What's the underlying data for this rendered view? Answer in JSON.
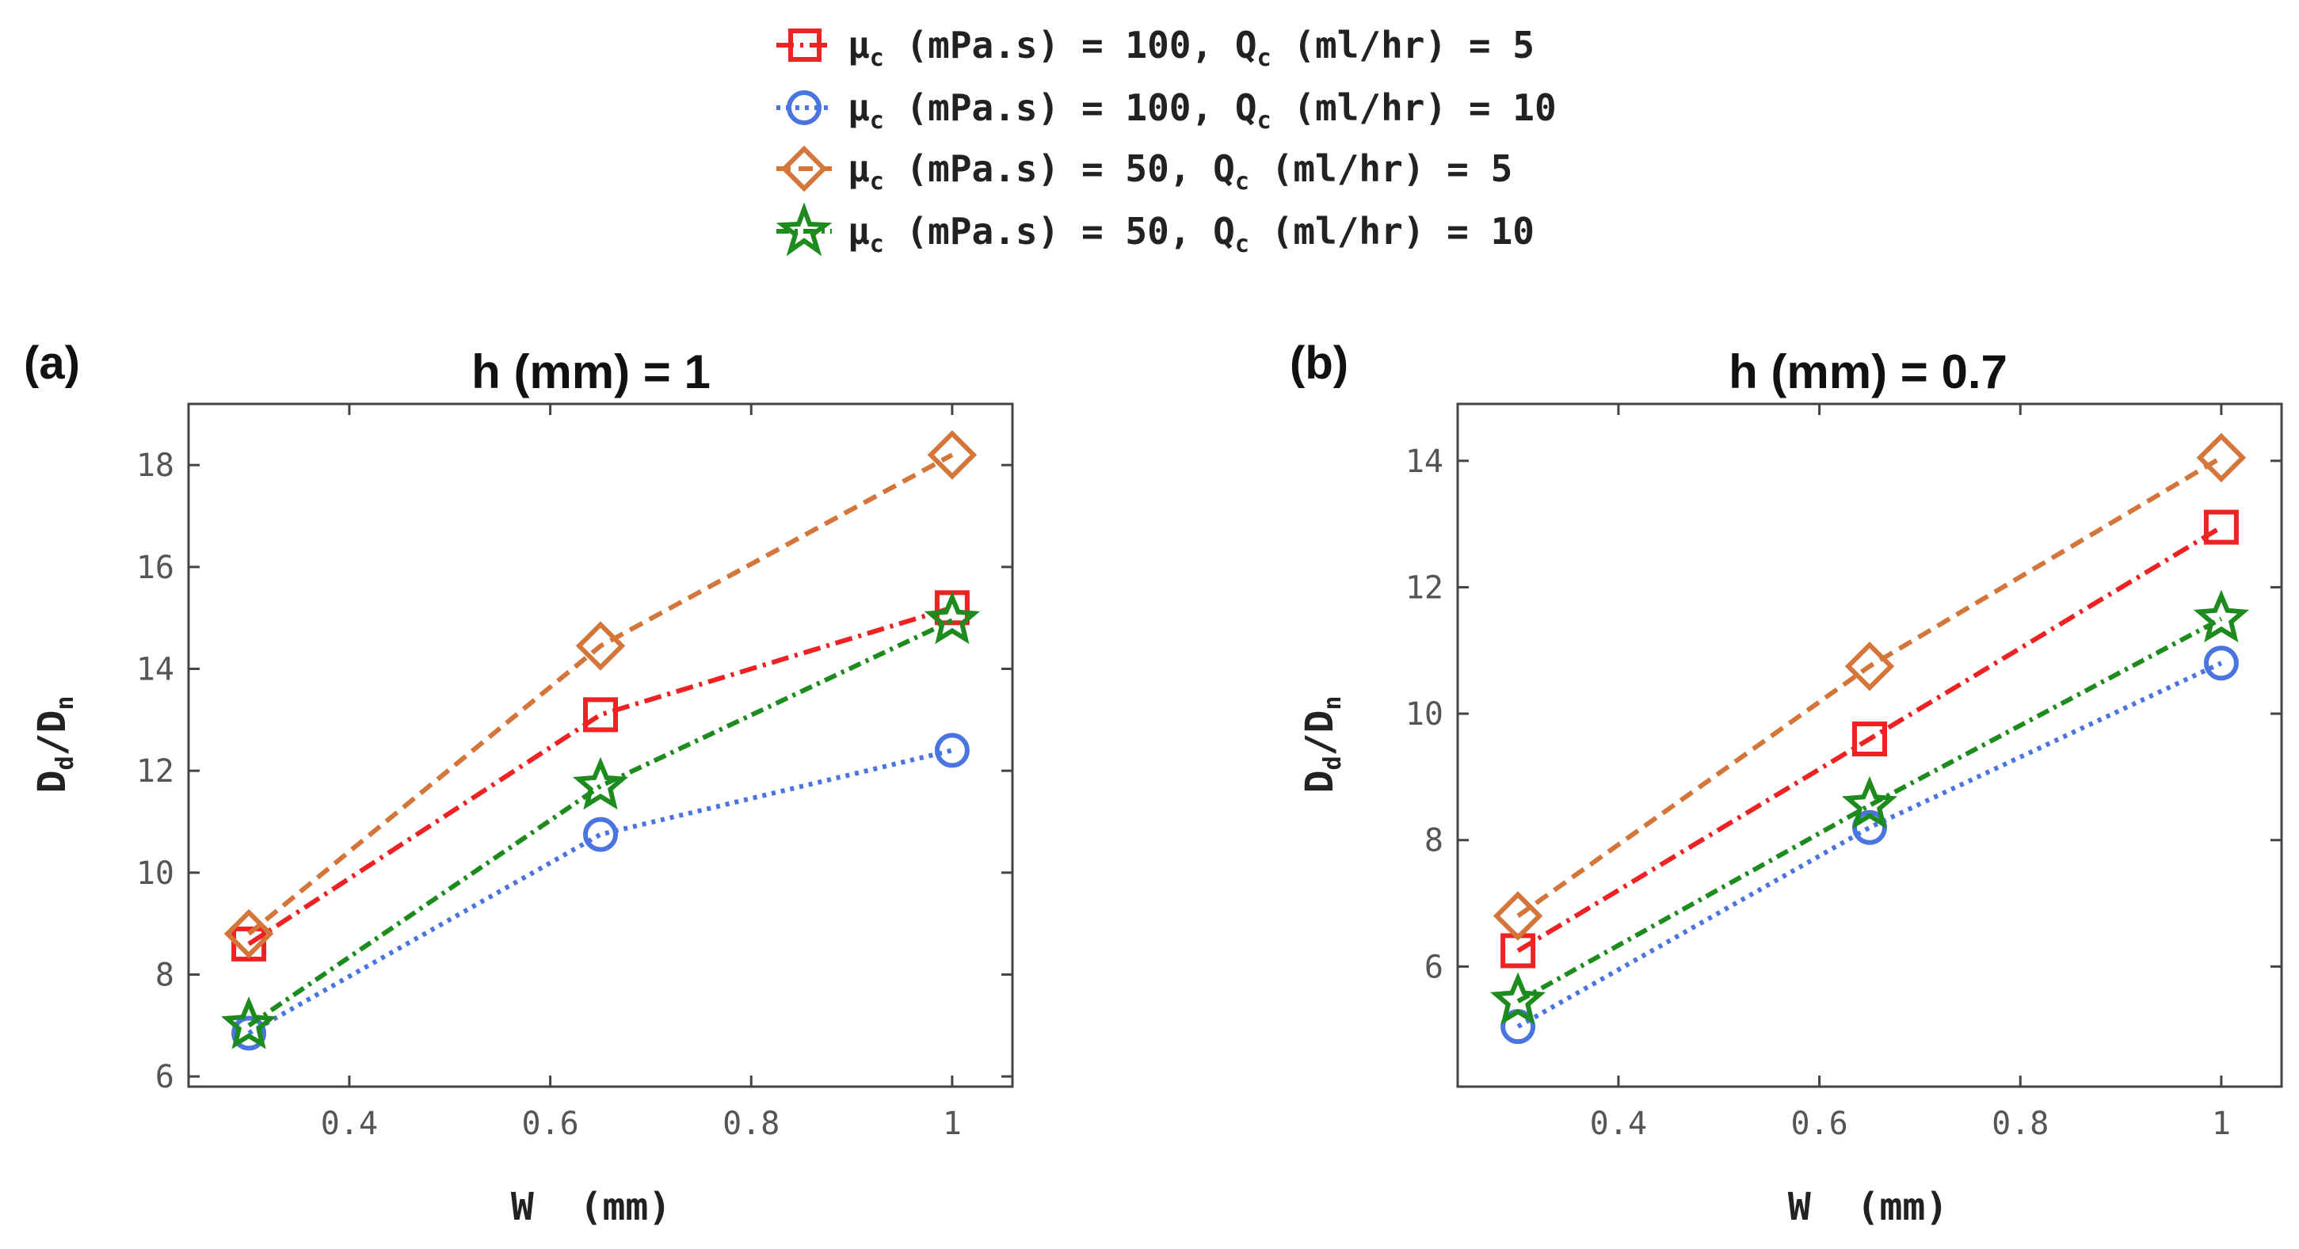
{
  "legend": {
    "entries": [
      {
        "sym": "μ",
        "sub1": "c",
        "mid": " (mPa.s) = 100, Q",
        "sub2": "c",
        "tail": " (ml/hr) = 5"
      },
      {
        "sym": "μ",
        "sub1": "c",
        "mid": " (mPa.s) = 100, Q",
        "sub2": "c",
        "tail": " (ml/hr) = 10"
      },
      {
        "sym": "μ",
        "sub1": "c",
        "mid": " (mPa.s) = 50, Q",
        "sub2": "c",
        "tail": " (ml/hr) = 5"
      },
      {
        "sym": "μ",
        "sub1": "c",
        "mid": " (mPa.s) = 50, Q",
        "sub2": "c",
        "tail": " (ml/hr) = 10"
      }
    ]
  },
  "axes": {
    "xlabel": "W  (mm)",
    "ylabel_main": "D",
    "ylabel_sub1": "d",
    "ylabel_slash": "/D",
    "ylabel_sub2": "n"
  },
  "chart_data": [
    {
      "type": "line",
      "panel_label": "(a)",
      "title": "h (mm) = 1",
      "xlim": [
        0.24,
        1.06
      ],
      "ylim": [
        5.8,
        19.2
      ],
      "xticks": [
        0.4,
        0.6,
        0.8,
        1
      ],
      "xtick_labels": [
        "0.4",
        "0.6",
        "0.8",
        "1"
      ],
      "yticks": [
        6,
        8,
        10,
        12,
        14,
        16,
        18
      ],
      "ytick_labels": [
        "6",
        "8",
        "10",
        "12",
        "14",
        "16",
        "18"
      ],
      "x": [
        0.3,
        0.65,
        1
      ],
      "grid": false,
      "series": [
        {
          "values": [
            8.6,
            13.1,
            15.2
          ],
          "color": "#ee2222",
          "marker": "square",
          "dash": "dashdot"
        },
        {
          "values": [
            6.85,
            10.75,
            12.4
          ],
          "color": "#4a74e0",
          "marker": "circle",
          "dash": "dotted"
        },
        {
          "values": [
            8.8,
            14.45,
            18.2
          ],
          "color": "#d4753a",
          "marker": "diamond",
          "dash": "dashed"
        },
        {
          "values": [
            7.0,
            11.7,
            14.95
          ],
          "color": "#1e8b1e",
          "marker": "star",
          "dash": "dashdot2"
        }
      ]
    },
    {
      "type": "line",
      "panel_label": "(b)",
      "title": "h (mm) = 0.7",
      "xlim": [
        0.24,
        1.06
      ],
      "ylim": [
        4.1,
        14.9
      ],
      "xticks": [
        0.4,
        0.6,
        0.8,
        1
      ],
      "xtick_labels": [
        "0.4",
        "0.6",
        "0.8",
        "1"
      ],
      "yticks": [
        6,
        8,
        10,
        12,
        14
      ],
      "ytick_labels": [
        "6",
        "8",
        "10",
        "12",
        "14"
      ],
      "x": [
        0.3,
        0.65,
        1
      ],
      "grid": false,
      "series": [
        {
          "values": [
            6.25,
            9.6,
            12.95
          ],
          "color": "#ee2222",
          "marker": "square",
          "dash": "dashdot"
        },
        {
          "values": [
            5.05,
            8.2,
            10.8
          ],
          "color": "#4a74e0",
          "marker": "circle",
          "dash": "dotted"
        },
        {
          "values": [
            6.8,
            10.75,
            14.05
          ],
          "color": "#d4753a",
          "marker": "diamond",
          "dash": "dashed"
        },
        {
          "values": [
            5.45,
            8.55,
            11.5
          ],
          "color": "#1e8b1e",
          "marker": "star",
          "dash": "dashdot2"
        }
      ]
    }
  ]
}
